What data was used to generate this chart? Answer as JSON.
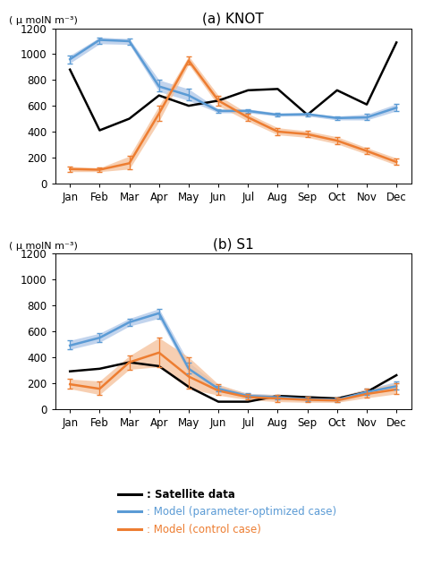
{
  "months": [
    "Jan",
    "Feb",
    "Mar",
    "Apr",
    "May",
    "Jun",
    "Jul",
    "Aug",
    "Sep",
    "Oct",
    "Nov",
    "Dec"
  ],
  "knot": {
    "satellite": [
      880,
      410,
      500,
      680,
      600,
      640,
      720,
      730,
      530,
      720,
      610,
      1090
    ],
    "blue_mean": [
      960,
      1110,
      1100,
      750,
      680,
      560,
      560,
      530,
      535,
      505,
      510,
      585
    ],
    "blue_upper": [
      990,
      1130,
      1120,
      800,
      730,
      575,
      575,
      545,
      545,
      520,
      535,
      615
    ],
    "blue_lower": [
      930,
      1080,
      1075,
      710,
      640,
      545,
      545,
      520,
      520,
      490,
      490,
      560
    ],
    "orange_mean": [
      110,
      105,
      155,
      540,
      950,
      640,
      510,
      400,
      380,
      330,
      250,
      165
    ],
    "orange_upper": [
      130,
      120,
      210,
      600,
      985,
      680,
      540,
      430,
      405,
      360,
      275,
      195
    ],
    "orange_lower": [
      90,
      90,
      110,
      480,
      920,
      600,
      480,
      375,
      355,
      305,
      225,
      140
    ]
  },
  "s1": {
    "satellite": [
      290,
      310,
      360,
      330,
      170,
      55,
      55,
      100,
      90,
      80,
      130,
      260
    ],
    "blue_mean": [
      490,
      550,
      670,
      740,
      310,
      155,
      100,
      90,
      75,
      70,
      130,
      175
    ],
    "blue_upper": [
      530,
      585,
      700,
      775,
      360,
      180,
      120,
      110,
      95,
      90,
      155,
      210
    ],
    "blue_lower": [
      460,
      515,
      640,
      700,
      275,
      135,
      85,
      75,
      60,
      55,
      110,
      150
    ],
    "orange_mean": [
      190,
      155,
      360,
      435,
      250,
      140,
      90,
      80,
      70,
      65,
      115,
      150
    ],
    "orange_upper": [
      230,
      215,
      410,
      550,
      400,
      190,
      115,
      110,
      95,
      90,
      155,
      195
    ],
    "orange_lower": [
      155,
      110,
      305,
      325,
      155,
      105,
      70,
      55,
      50,
      50,
      85,
      115
    ]
  },
  "ylabel": "( μ molN m⁻³)",
  "title_a": "(a) KNOT",
  "title_b": "(b) S1",
  "ylim": [
    0,
    1200
  ],
  "yticks": [
    0,
    200,
    400,
    600,
    800,
    1000,
    1200
  ],
  "black_color": "#000000",
  "blue_color": "#5B9BD5",
  "blue_fill": "#AEC6E8",
  "orange_color": "#ED7D31",
  "orange_fill": "#F5C099",
  "legend_items": [
    ": Satellite data",
    ": Model (parameter-optimized case)",
    ": Model (control case)"
  ]
}
